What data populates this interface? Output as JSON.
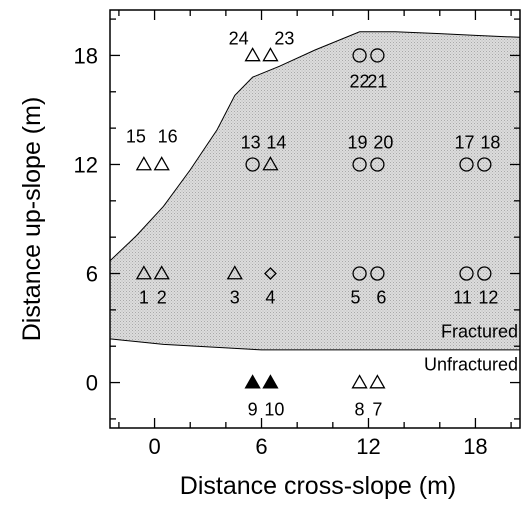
{
  "chart_data": {
    "type": "scatter",
    "xlabel": "Distance cross-slope (m)",
    "ylabel": "Distance up-slope (m)",
    "xlim": [
      -2.5,
      20.5
    ],
    "ylim": [
      -2.5,
      20.5
    ],
    "xticks": [
      0,
      6,
      12,
      18
    ],
    "yticks": [
      0,
      6,
      12,
      18
    ],
    "xtick_labels": [
      "0",
      "6",
      "12",
      "18"
    ],
    "ytick_labels": [
      "0",
      "6",
      "12",
      "18"
    ],
    "grid": false,
    "regions": [
      {
        "name": "Fractured",
        "fill": "#d4d4d4",
        "boundary": [
          [
            -2.5,
            6.7
          ],
          [
            -1.0,
            8.1
          ],
          [
            0.5,
            9.7
          ],
          [
            2.0,
            11.7
          ],
          [
            3.5,
            13.9
          ],
          [
            4.5,
            15.8
          ],
          [
            5.5,
            16.8
          ],
          [
            7.0,
            17.4
          ],
          [
            9.0,
            18.3
          ],
          [
            11.5,
            19.3
          ],
          [
            13.5,
            19.3
          ],
          [
            16.0,
            19.2
          ],
          [
            18.0,
            19.1
          ],
          [
            20.5,
            19.0
          ],
          [
            20.5,
            1.8
          ],
          [
            18.0,
            1.8
          ],
          [
            12.0,
            1.8
          ],
          [
            6.0,
            1.8
          ],
          [
            0.5,
            2.1
          ],
          [
            -2.5,
            2.4
          ]
        ]
      }
    ],
    "annotations": [
      {
        "text": "Fractured",
        "x": 17.0,
        "y": 2.6
      },
      {
        "text": "Unfractured",
        "x": 15.5,
        "y": 1.1
      }
    ],
    "series": [
      {
        "marker": "open-triangle",
        "points": [
          {
            "id": "1",
            "x": -0.6,
            "y": 6
          },
          {
            "id": "2",
            "x": 0.4,
            "y": 6
          },
          {
            "id": "3",
            "x": 4.5,
            "y": 6
          },
          {
            "id": "15",
            "x": -0.6,
            "y": 12
          },
          {
            "id": "16",
            "x": 0.4,
            "y": 12
          },
          {
            "id": "14",
            "x": 6.5,
            "y": 12
          },
          {
            "id": "24",
            "x": 5.5,
            "y": 18
          },
          {
            "id": "23",
            "x": 6.5,
            "y": 18
          },
          {
            "id": "8",
            "x": 11.5,
            "y": 0
          },
          {
            "id": "7",
            "x": 12.5,
            "y": 0
          }
        ]
      },
      {
        "marker": "open-diamond",
        "points": [
          {
            "id": "4",
            "x": 6.5,
            "y": 6
          }
        ]
      },
      {
        "marker": "open-circle",
        "points": [
          {
            "id": "5",
            "x": 11.5,
            "y": 6
          },
          {
            "id": "6",
            "x": 12.5,
            "y": 6
          },
          {
            "id": "11",
            "x": 17.5,
            "y": 6
          },
          {
            "id": "12",
            "x": 18.5,
            "y": 6
          },
          {
            "id": "13",
            "x": 5.5,
            "y": 12
          },
          {
            "id": "19",
            "x": 11.5,
            "y": 12
          },
          {
            "id": "20",
            "x": 12.5,
            "y": 12
          },
          {
            "id": "17",
            "x": 17.5,
            "y": 12
          },
          {
            "id": "18",
            "x": 18.5,
            "y": 12
          },
          {
            "id": "22",
            "x": 11.5,
            "y": 18
          },
          {
            "id": "21",
            "x": 12.5,
            "y": 18
          }
        ]
      },
      {
        "marker": "filled-triangle",
        "points": [
          {
            "id": "9",
            "x": 5.5,
            "y": 0
          },
          {
            "id": "10",
            "x": 6.5,
            "y": 0
          }
        ]
      }
    ]
  }
}
